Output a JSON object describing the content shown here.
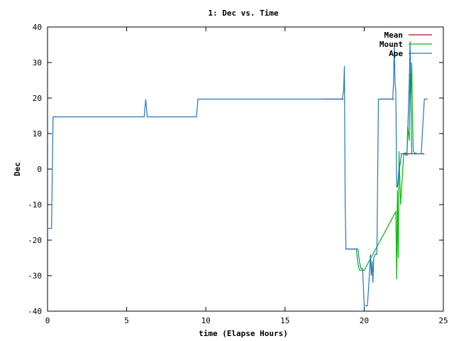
{
  "chart_data": {
    "type": "line",
    "title": "1: Dec vs. Time",
    "xlabel": "time (Elapse Hours)",
    "ylabel": "Dec",
    "xlim": [
      0,
      25
    ],
    "ylim": [
      -40,
      40
    ],
    "xticks": [
      "0",
      "5",
      "10",
      "15",
      "20",
      "25"
    ],
    "yticks": [
      "40",
      "30",
      "20",
      "10",
      "0",
      "-10",
      "-20",
      "-30",
      "-40"
    ],
    "grid": false,
    "legend_position": "top-right",
    "series": [
      {
        "name": "Mean",
        "color": "#cc0033",
        "x": [
          17.3,
          18.7
        ],
        "y": [
          19.7,
          19.7
        ]
      },
      {
        "name": "Mean",
        "color": "#cc0033",
        "x": [
          18.8,
          19.6
        ],
        "y": [
          -22.5,
          -22.5
        ]
      },
      {
        "name": "Mean",
        "color": "#cc0033",
        "x": [
          21.0,
          21.9
        ],
        "y": [
          19.7,
          19.7
        ]
      },
      {
        "name": "Mean",
        "color": "#cc0033",
        "x": [
          22.3,
          23.8
        ],
        "y": [
          4.3,
          4.3
        ]
      },
      {
        "name": "Mount",
        "color": "#00bb00",
        "x": [
          19.5,
          19.6,
          19.7,
          19.8,
          19.9,
          20.0,
          22.0,
          22.05,
          22.1,
          22.15,
          22.2,
          22.3,
          22.5,
          22.7,
          22.75,
          22.85,
          22.9,
          22.95,
          23.0,
          23.05,
          23.1,
          23.2,
          23.3
        ],
        "y": [
          -22.5,
          -26.5,
          -28.5,
          -28.5,
          -28.5,
          -28.5,
          -12,
          -31,
          -6,
          -25,
          5,
          -10,
          4.5,
          4.5,
          12,
          8,
          27,
          20,
          30,
          15,
          5,
          4.5,
          4.5
        ]
      },
      {
        "name": "Ape",
        "color": "#1f77c4",
        "x": [
          0,
          0.25,
          0.3,
          0.35,
          6.1,
          6.2,
          6.3,
          6.4,
          9.4,
          9.45,
          9.5,
          18.6,
          18.7,
          18.75,
          18.8,
          18.85,
          18.9,
          19.6,
          19.7,
          19.8,
          19.9,
          20.0,
          20.1,
          20.2,
          20.3,
          20.4,
          20.45,
          20.5,
          20.55,
          20.6,
          20.7,
          20.8,
          20.9,
          21.0,
          21.8,
          21.85,
          21.9,
          21.95,
          22.0,
          22.05,
          22.1,
          22.2,
          22.3,
          22.35,
          22.4,
          22.5,
          22.7,
          22.8,
          22.85,
          22.9,
          22.95,
          23.0,
          23.1,
          23.2,
          23.3,
          23.6,
          23.8,
          24.0
        ],
        "y": [
          -16.7,
          -16.7,
          -1,
          14.7,
          14.7,
          19.7,
          14.7,
          14.7,
          14.7,
          17,
          19.7,
          19.7,
          22,
          29,
          -10,
          -22.5,
          -22.5,
          -22.5,
          -26,
          -28,
          -28,
          -38.5,
          -38.5,
          -38.5,
          -32,
          -24,
          -30,
          -26,
          -32,
          -25,
          -24,
          -24,
          19.7,
          19.7,
          19.7,
          24,
          35,
          24,
          22,
          -5,
          -5,
          0,
          2,
          4.3,
          4.3,
          4.3,
          3.8,
          18,
          25,
          36,
          20,
          4.3,
          4.3,
          4.3,
          4.3,
          4.3,
          19.7,
          19.7
        ]
      }
    ],
    "legend": [
      "Mean",
      "Mount",
      "Ape"
    ]
  }
}
